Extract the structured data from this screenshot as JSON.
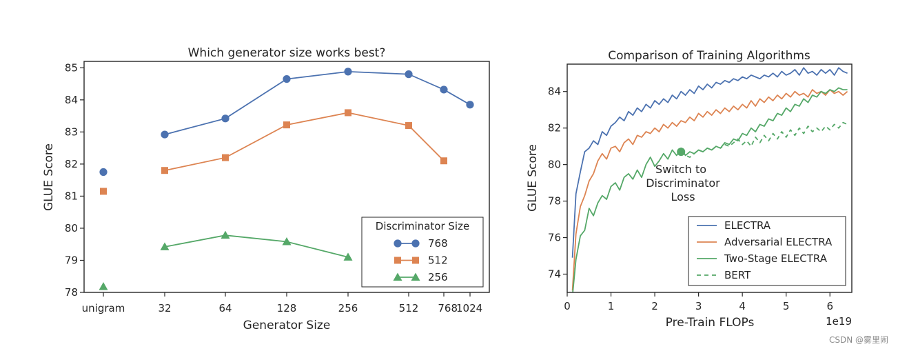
{
  "watermark": "CSDN @雾里闹",
  "chart_data": [
    {
      "type": "line",
      "title": "Which generator size works best?",
      "xlabel": "Generator Size",
      "ylabel": "GLUE Score",
      "categories": [
        "unigram",
        "32",
        "64",
        "128",
        "256",
        "512",
        "768",
        "1024"
      ],
      "ylim": [
        78,
        85.2
      ],
      "yticks": [
        78,
        79,
        80,
        81,
        82,
        83,
        84,
        85
      ],
      "grid": false,
      "legend": {
        "title": "Discriminator Size",
        "placement": "lower-right"
      },
      "series": [
        {
          "name": "768",
          "marker": "circle",
          "color": "#4c72b0",
          "values": [
            81.75,
            82.92,
            83.42,
            84.65,
            84.88,
            84.8,
            84.32,
            83.85
          ]
        },
        {
          "name": "512",
          "marker": "square",
          "color": "#dd8452",
          "values": [
            81.15,
            81.8,
            82.2,
            83.22,
            83.6,
            83.2,
            82.1,
            null
          ]
        },
        {
          "name": "256",
          "marker": "triangle",
          "color": "#55a868",
          "values": [
            78.18,
            79.42,
            79.78,
            79.58,
            79.1,
            null,
            null,
            null
          ]
        }
      ]
    },
    {
      "type": "line",
      "title": "Comparison of Training Algorithms",
      "xlabel": "Pre-Train FLOPs",
      "ylabel": "GLUE Score",
      "x_offset_label": "1e19",
      "xlim": [
        0,
        6.5
      ],
      "ylim": [
        73,
        85.5
      ],
      "xticks": [
        0,
        1,
        2,
        3,
        4,
        5,
        6
      ],
      "yticks": [
        74,
        76,
        78,
        80,
        82,
        84
      ],
      "grid": false,
      "legend": {
        "placement": "lower-right"
      },
      "annotation": {
        "text_lines": [
          "Switch to",
          "Discriminator",
          "Loss"
        ],
        "x": 2.6,
        "y": 80.7
      },
      "series": [
        {
          "name": "ELECTRA",
          "color": "#4c72b0",
          "dash": false,
          "x": [
            0.12,
            0.2,
            0.3,
            0.4,
            0.5,
            0.6,
            0.7,
            0.8,
            0.9,
            1.0,
            1.1,
            1.2,
            1.3,
            1.4,
            1.5,
            1.6,
            1.7,
            1.8,
            1.9,
            2.0,
            2.1,
            2.2,
            2.3,
            2.4,
            2.5,
            2.6,
            2.7,
            2.8,
            2.9,
            3.0,
            3.1,
            3.2,
            3.3,
            3.4,
            3.5,
            3.6,
            3.7,
            3.8,
            3.9,
            4.0,
            4.1,
            4.2,
            4.3,
            4.4,
            4.5,
            4.6,
            4.7,
            4.8,
            4.9,
            5.0,
            5.1,
            5.2,
            5.3,
            5.4,
            5.5,
            5.6,
            5.7,
            5.8,
            5.9,
            6.0,
            6.1,
            6.2,
            6.3,
            6.4
          ],
          "y": [
            74.9,
            78.4,
            79.6,
            80.7,
            80.9,
            81.3,
            81.1,
            81.8,
            81.6,
            82.1,
            82.3,
            82.6,
            82.4,
            82.9,
            82.7,
            83.1,
            82.9,
            83.3,
            83.1,
            83.5,
            83.3,
            83.6,
            83.4,
            83.8,
            83.6,
            84.0,
            83.8,
            84.1,
            83.9,
            84.3,
            84.1,
            84.4,
            84.2,
            84.5,
            84.4,
            84.6,
            84.5,
            84.7,
            84.6,
            84.8,
            84.7,
            84.9,
            84.8,
            84.7,
            84.9,
            84.8,
            85.0,
            84.8,
            85.1,
            84.9,
            85.0,
            85.2,
            84.9,
            85.3,
            85.0,
            85.1,
            84.9,
            85.2,
            85.0,
            85.2,
            84.9,
            85.3,
            85.1,
            85.0
          ]
        },
        {
          "name": "Adversarial ELECTRA",
          "color": "#dd8452",
          "dash": false,
          "x": [
            0.12,
            0.2,
            0.3,
            0.4,
            0.5,
            0.6,
            0.7,
            0.8,
            0.9,
            1.0,
            1.1,
            1.2,
            1.3,
            1.4,
            1.5,
            1.6,
            1.7,
            1.8,
            1.9,
            2.0,
            2.1,
            2.2,
            2.3,
            2.4,
            2.5,
            2.6,
            2.7,
            2.8,
            2.9,
            3.0,
            3.1,
            3.2,
            3.3,
            3.4,
            3.5,
            3.6,
            3.7,
            3.8,
            3.9,
            4.0,
            4.1,
            4.2,
            4.3,
            4.4,
            4.5,
            4.6,
            4.7,
            4.8,
            4.9,
            5.0,
            5.1,
            5.2,
            5.3,
            5.4,
            5.5,
            5.6,
            5.7,
            5.8,
            5.9,
            6.0,
            6.1,
            6.2,
            6.3,
            6.4
          ],
          "y": [
            73.1,
            76.2,
            77.7,
            78.3,
            79.1,
            79.5,
            80.2,
            80.6,
            80.3,
            80.9,
            81.0,
            80.7,
            81.2,
            81.4,
            81.1,
            81.6,
            81.5,
            81.8,
            81.7,
            82.0,
            81.8,
            82.2,
            82.0,
            82.3,
            82.1,
            82.4,
            82.3,
            82.6,
            82.4,
            82.8,
            82.6,
            82.9,
            82.7,
            83.0,
            82.8,
            83.1,
            82.9,
            83.2,
            83.0,
            83.3,
            83.1,
            83.5,
            83.2,
            83.6,
            83.4,
            83.7,
            83.5,
            83.8,
            83.6,
            83.9,
            83.7,
            84.0,
            83.8,
            83.9,
            83.7,
            84.1,
            83.9,
            84.0,
            83.8,
            84.1,
            83.9,
            84.0,
            83.8,
            84.0
          ]
        },
        {
          "name": "Two-Stage ELECTRA",
          "color": "#55a868",
          "dash": false,
          "x": [
            0.12,
            0.2,
            0.3,
            0.4,
            0.5,
            0.6,
            0.7,
            0.8,
            0.9,
            1.0,
            1.1,
            1.2,
            1.3,
            1.4,
            1.5,
            1.6,
            1.7,
            1.8,
            1.9,
            2.0,
            2.1,
            2.2,
            2.3,
            2.4,
            2.5,
            2.6,
            2.7,
            2.8,
            2.9,
            3.0,
            3.1,
            3.2,
            3.3,
            3.4,
            3.5,
            3.6,
            3.7,
            3.8,
            3.9,
            4.0,
            4.1,
            4.2,
            4.3,
            4.4,
            4.5,
            4.6,
            4.7,
            4.8,
            4.9,
            5.0,
            5.1,
            5.2,
            5.3,
            5.4,
            5.5,
            5.6,
            5.7,
            5.8,
            5.9,
            6.0,
            6.1,
            6.2,
            6.3,
            6.4
          ],
          "y": [
            72.8,
            74.8,
            76.1,
            76.4,
            77.6,
            77.2,
            77.9,
            78.3,
            78.1,
            78.8,
            79.0,
            78.6,
            79.3,
            79.5,
            79.2,
            79.7,
            79.3,
            80.0,
            80.4,
            79.9,
            80.2,
            80.6,
            80.3,
            80.8,
            80.5,
            80.9,
            80.5,
            80.7,
            80.6,
            80.8,
            80.7,
            80.9,
            80.8,
            81.0,
            80.9,
            81.2,
            81.1,
            81.4,
            81.3,
            81.7,
            81.6,
            82.0,
            81.8,
            82.2,
            82.1,
            82.5,
            82.4,
            82.8,
            82.7,
            83.1,
            82.9,
            83.3,
            83.2,
            83.6,
            83.4,
            83.8,
            83.7,
            84.0,
            83.9,
            84.1,
            84.0,
            84.2,
            84.1,
            84.1
          ]
        },
        {
          "name": "BERT",
          "color": "#55a868",
          "dash": true,
          "x": [
            2.6,
            2.7,
            2.8,
            2.9,
            3.0,
            3.1,
            3.2,
            3.3,
            3.4,
            3.5,
            3.6,
            3.7,
            3.8,
            3.9,
            4.0,
            4.1,
            4.2,
            4.3,
            4.4,
            4.5,
            4.6,
            4.7,
            4.8,
            4.9,
            5.0,
            5.1,
            5.2,
            5.3,
            5.4,
            5.5,
            5.6,
            5.7,
            5.8,
            5.9,
            6.0,
            6.1,
            6.2,
            6.3,
            6.4
          ],
          "y": [
            80.7,
            80.5,
            80.4,
            80.6,
            80.8,
            80.7,
            80.9,
            80.8,
            81.0,
            80.9,
            81.1,
            81.0,
            81.2,
            81.4,
            81.1,
            81.3,
            81.0,
            81.5,
            81.2,
            81.6,
            81.3,
            81.7,
            81.4,
            81.8,
            81.5,
            81.9,
            81.6,
            82.0,
            81.7,
            82.1,
            81.8,
            82.0,
            81.8,
            82.1,
            81.9,
            82.2,
            82.0,
            82.3,
            82.2
          ]
        }
      ]
    }
  ]
}
